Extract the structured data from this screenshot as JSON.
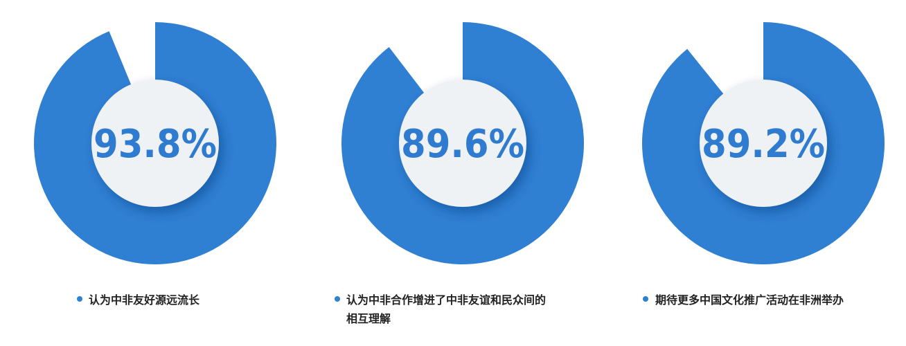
{
  "chart_data": [
    {
      "type": "pie",
      "style": "donut",
      "values": [
        93.8,
        6.2
      ],
      "value_label": "93.8%",
      "legend": "认为中非友好源远流长"
    },
    {
      "type": "pie",
      "style": "donut",
      "values": [
        89.6,
        10.4
      ],
      "value_label": "89.6%",
      "legend": "认为中非合作增进了中非友谊和民众间的相互理解",
      "legend_lines": [
        "认为中非合作增进了中非友谊和民众间的",
        "相互理解"
      ]
    },
    {
      "type": "pie",
      "style": "donut",
      "values": [
        89.2,
        10.8
      ],
      "value_label": "89.2%",
      "legend": "期待更多中国文化推广活动在非洲举办"
    }
  ],
  "colors": {
    "fill": "#2f7fd3",
    "remainder": "#ffffff",
    "center": "#eff2f5",
    "text": "#2f7bd0",
    "label": "#222222"
  }
}
